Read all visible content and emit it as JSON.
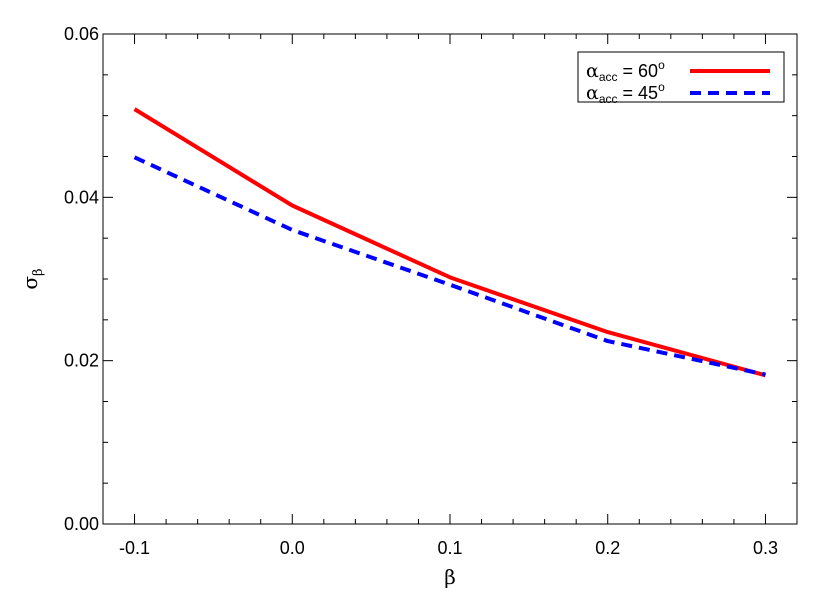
{
  "chart_data": {
    "type": "line",
    "title": "",
    "xlabel": "β",
    "ylabel": {
      "base": "σ",
      "sub": "β"
    },
    "xlim": [
      -0.12,
      0.32
    ],
    "ylim": [
      0.0,
      0.06
    ],
    "xticks": [
      -0.1,
      0.0,
      0.1,
      0.2,
      0.3
    ],
    "xtick_labels": [
      "-0.1",
      "0.0",
      "0.1",
      "0.2",
      "0.3"
    ],
    "yticks": [
      0.0,
      0.02,
      0.04,
      0.06
    ],
    "ytick_labels": [
      "0.00",
      "0.02",
      "0.04",
      "0.06"
    ],
    "x_minor_step": 0.02,
    "y_minor_step": 0.005,
    "grid": false,
    "legend_position": "top-right",
    "x": [
      -0.1,
      0.0,
      0.1,
      0.2,
      0.3
    ],
    "series": [
      {
        "name": {
          "base": "α",
          "sub": "acc",
          "rest": " = 60",
          "sup": "o"
        },
        "values": [
          0.0508,
          0.039,
          0.0302,
          0.0235,
          0.0182
        ],
        "color": "#ff0000",
        "dash": "solid"
      },
      {
        "name": {
          "base": "α",
          "sub": "acc",
          "rest": " = 45",
          "sup": "o"
        },
        "values": [
          0.0449,
          0.036,
          0.0293,
          0.0224,
          0.0183
        ],
        "color": "#0000ff",
        "dash": "dashed"
      }
    ]
  }
}
